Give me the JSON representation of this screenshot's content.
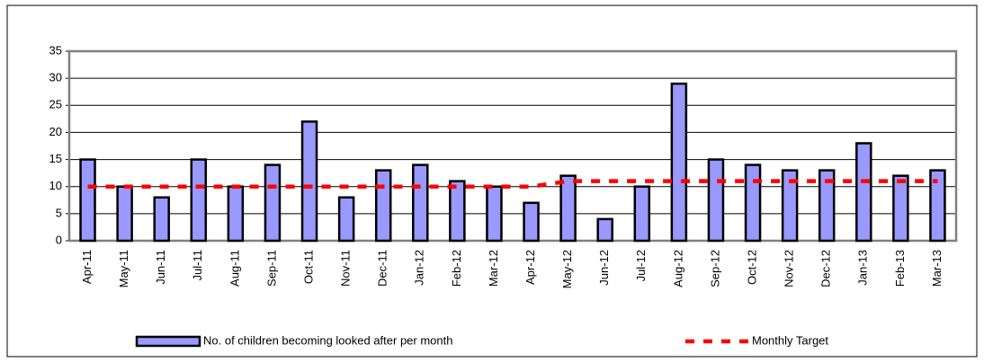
{
  "chart_data": {
    "type": "bar",
    "categories": [
      "Apr-11",
      "May-11",
      "Jun-11",
      "Jul-11",
      "Aug-11",
      "Sep-11",
      "Oct-11",
      "Nov-11",
      "Dec-11",
      "Jan-12",
      "Feb-12",
      "Mar-12",
      "Apr-12",
      "May-12",
      "Jun-12",
      "Jul-12",
      "Aug-12",
      "Sep-12",
      "Oct-12",
      "Nov-12",
      "Dec-12",
      "Jan-13",
      "Feb-13",
      "Mar-13"
    ],
    "series": [
      {
        "name": "No. of children becoming looked after per month",
        "type": "bar",
        "color": "#9999ff",
        "values": [
          15,
          10,
          8,
          15,
          10,
          14,
          22,
          8,
          13,
          14,
          11,
          10,
          7,
          12,
          4,
          10,
          29,
          15,
          14,
          13,
          13,
          18,
          12,
          13
        ]
      },
      {
        "name": "Monthly Target",
        "type": "line",
        "color": "#ff0000",
        "values": [
          10,
          10,
          10,
          10,
          10,
          10,
          10,
          10,
          10,
          10,
          10,
          10,
          10,
          11,
          11,
          11,
          11,
          11,
          11,
          11,
          11,
          11,
          11,
          11
        ]
      }
    ],
    "ylim": [
      0,
      35
    ],
    "yticks": [
      0,
      5,
      10,
      15,
      20,
      25,
      30,
      35
    ],
    "grid": true
  }
}
